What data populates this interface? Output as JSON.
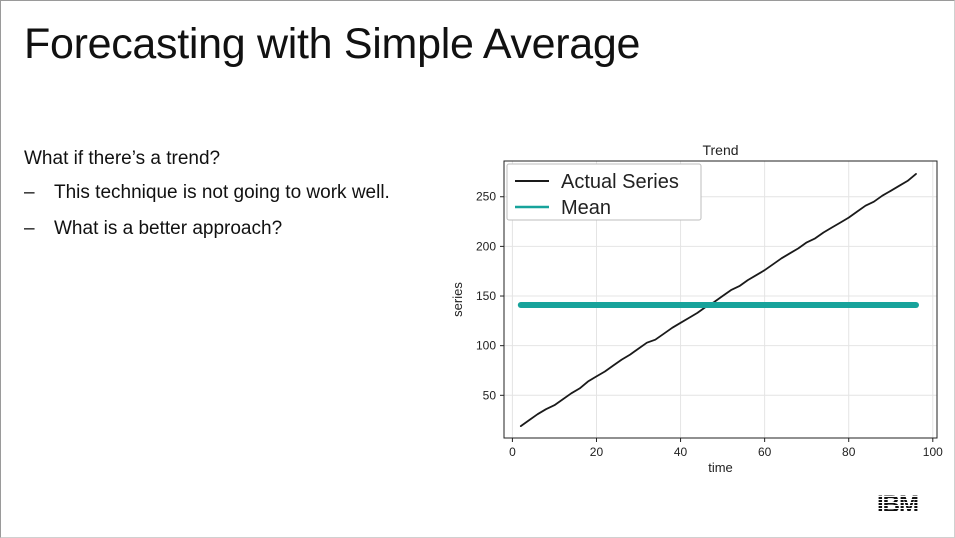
{
  "slide": {
    "title": "Forecasting with Simple Average",
    "lead": "What if there’s a trend?",
    "bullets": [
      {
        "marker": "–",
        "text": "This technique is not going to work well."
      },
      {
        "marker": "–",
        "text": "What is a better approach?"
      }
    ],
    "logo_text": "IBM"
  },
  "chart_data": {
    "type": "line",
    "title": "Trend",
    "xlabel": "time",
    "ylabel": "series",
    "xlim": [
      -2,
      101
    ],
    "ylim": [
      7,
      286
    ],
    "xticks": [
      0,
      20,
      40,
      60,
      80,
      100
    ],
    "yticks": [
      50,
      100,
      150,
      200,
      250
    ],
    "grid": true,
    "legend_position": "top-left",
    "series": [
      {
        "name": "Actual Series",
        "color": "#1a1a1a",
        "x": [
          2,
          4,
          6,
          8,
          10,
          12,
          14,
          16,
          18,
          20,
          22,
          24,
          26,
          28,
          30,
          32,
          34,
          36,
          38,
          40,
          42,
          44,
          46,
          48,
          50,
          52,
          54,
          56,
          58,
          60,
          62,
          64,
          66,
          68,
          70,
          72,
          74,
          76,
          78,
          80,
          82,
          84,
          86,
          88,
          90,
          92,
          94,
          96
        ],
        "y": [
          19,
          25,
          31,
          36,
          40,
          46,
          52,
          57,
          64,
          69,
          74,
          80,
          86,
          91,
          97,
          103,
          106,
          112,
          118,
          123,
          128,
          133,
          139,
          144,
          150,
          156,
          160,
          166,
          171,
          176,
          182,
          188,
          193,
          198,
          204,
          208,
          214,
          219,
          224,
          229,
          235,
          241,
          245,
          251,
          256,
          261,
          266,
          273
        ]
      },
      {
        "name": "Mean",
        "color": "#17a39b",
        "x": [
          2,
          96
        ],
        "y": [
          141,
          141
        ]
      }
    ]
  }
}
